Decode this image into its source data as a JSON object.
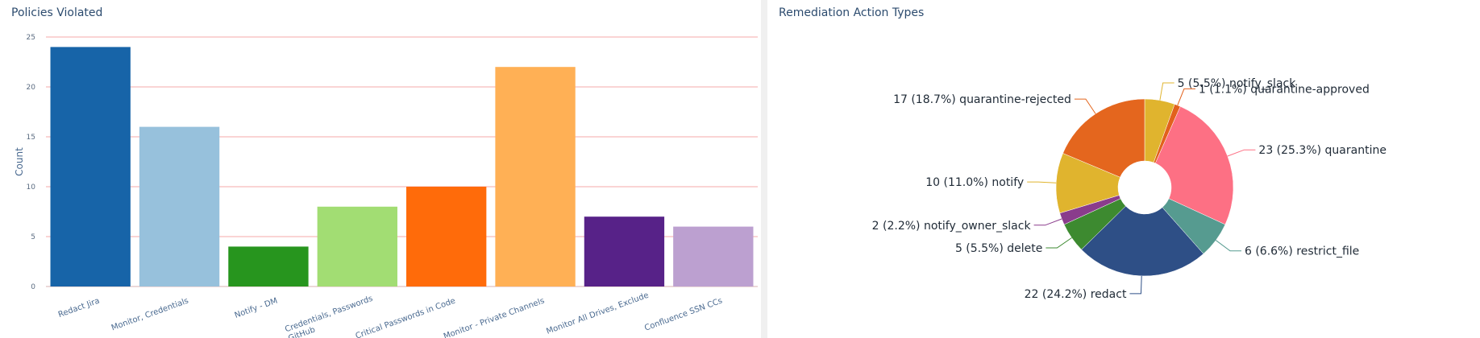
{
  "chart_data": [
    {
      "type": "bar",
      "title": "Policies Violated",
      "ylabel": "Count",
      "xlabel": "",
      "ylim": [
        0,
        25
      ],
      "yticks": [
        0,
        5,
        10,
        15,
        20,
        25
      ],
      "grid": true,
      "categories": [
        "Redact Jira",
        "Monitor, Credentials",
        "Notify - DM",
        "Credentials, Passwords GitHub",
        "Critical Passwords in Code",
        "Monitor - Private Channels",
        "Monitor All Drives, Exclude ...",
        "Confluence SSN CCs"
      ],
      "values": [
        24,
        16,
        4,
        8,
        10,
        22,
        7,
        6
      ],
      "colors": [
        "#1764a8",
        "#97c1dc",
        "#27951e",
        "#a2dd73",
        "#ff6b0a",
        "#ffb055",
        "#572288",
        "#bca0d0"
      ]
    },
    {
      "type": "pie",
      "title": "Remediation Action Types",
      "donut": true,
      "slices": [
        {
          "label": "notify_slack",
          "value": 5,
          "percent": "5.5%",
          "color": "#e0b42e"
        },
        {
          "label": "quarantine-approved",
          "value": 1,
          "percent": "1.1%",
          "color": "#e2611c"
        },
        {
          "label": "quarantine",
          "value": 23,
          "percent": "25.3%",
          "color": "#fd7084"
        },
        {
          "label": "restrict_file",
          "value": 6,
          "percent": "6.6%",
          "color": "#569b90"
        },
        {
          "label": "redact",
          "value": 22,
          "percent": "24.2%",
          "color": "#2e4f86"
        },
        {
          "label": "delete",
          "value": 5,
          "percent": "5.5%",
          "color": "#3d8a30"
        },
        {
          "label": "notify_owner_slack",
          "value": 2,
          "percent": "2.2%",
          "color": "#8a3c8c"
        },
        {
          "label": "notify",
          "value": 10,
          "percent": "11.0%",
          "color": "#e0b42e"
        },
        {
          "label": "quarantine-rejected",
          "value": 17,
          "percent": "18.7%",
          "color": "#e4661e"
        }
      ]
    }
  ]
}
